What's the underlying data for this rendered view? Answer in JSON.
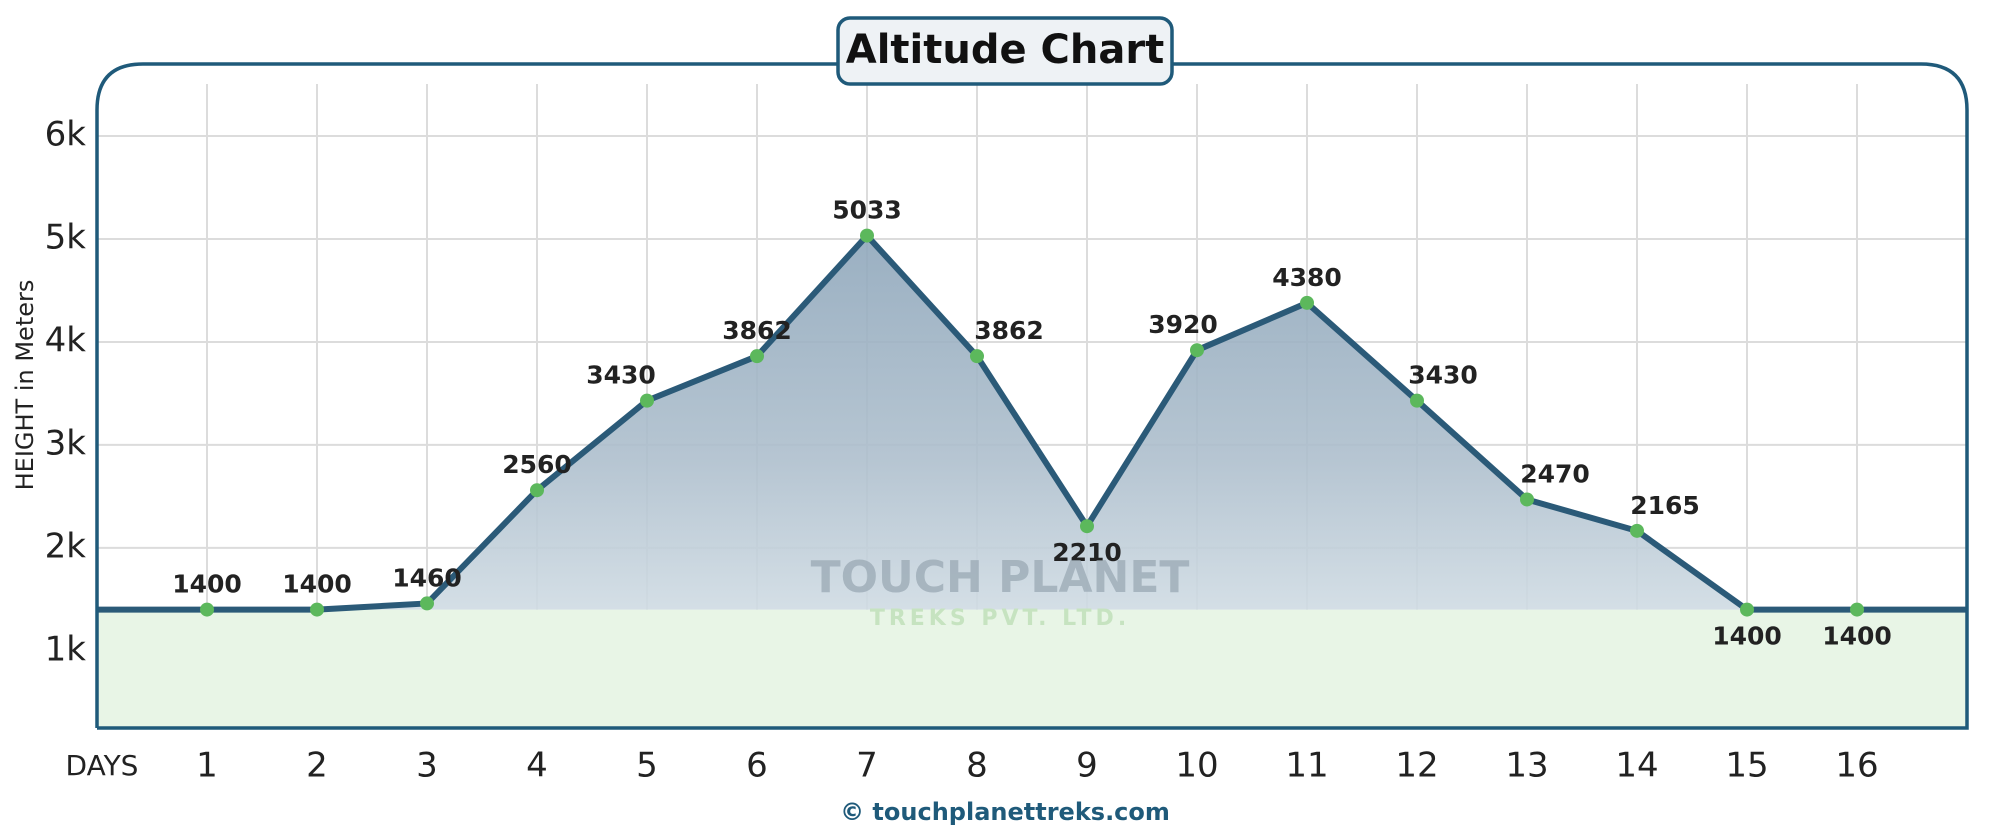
{
  "chart_data": {
    "type": "line",
    "title": "Altitude Chart",
    "x_label": "DAYS",
    "y_label": "HEIGHT in Meters",
    "annotations": [
      "TOUCH PLANET",
      "TREKS PVT. LTD.",
      "© touchplanettreks.com"
    ],
    "x": [
      1,
      2,
      3,
      4,
      5,
      6,
      7,
      8,
      9,
      10,
      11,
      12,
      13,
      14,
      15,
      16
    ],
    "values": [
      1400,
      1400,
      1460,
      2560,
      3430,
      3862,
      5033,
      3862,
      2210,
      3920,
      4380,
      3430,
      2470,
      2165,
      1400,
      1400
    ],
    "color": "#2b5a78",
    "marker_color": "#5cb85c",
    "xlim": [
      0,
      17
    ],
    "xticks": [
      1,
      2,
      3,
      4,
      5,
      6,
      7,
      8,
      9,
      10,
      11,
      12,
      13,
      14,
      15,
      16
    ],
    "ylim": [
      250,
      6700
    ],
    "yticks": [
      {
        "value": 1000,
        "label": "1k"
      },
      {
        "value": 2000,
        "label": "2k"
      },
      {
        "value": 3000,
        "label": "3k"
      },
      {
        "value": 4000,
        "label": "4k"
      },
      {
        "value": 5000,
        "label": "5k"
      },
      {
        "value": 6000,
        "label": "6k"
      }
    ],
    "grid": true
  }
}
